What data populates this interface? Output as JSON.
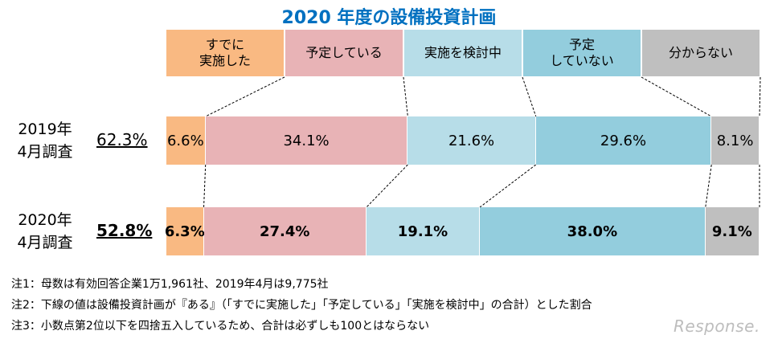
{
  "chart_data": {
    "type": "bar",
    "title": "2020 年度の設備投資計画",
    "categories": [
      "すでに\n実施した",
      "予定している",
      "実施を検討中",
      "予定\nしていない",
      "分からない"
    ],
    "colors": [
      "#f9b982",
      "#e8b3b6",
      "#b7dde8",
      "#93cddd",
      "#bfbfbf"
    ],
    "series": [
      {
        "name": "2019年\n4月調査",
        "total": "62.3%",
        "values": [
          6.6,
          34.1,
          21.6,
          29.6,
          8.1
        ],
        "labels": [
          "6.6%",
          "34.1%",
          "21.6%",
          "29.6%",
          "8.1%"
        ],
        "bold": false
      },
      {
        "name": "2020年\n4月調査",
        "total": "52.8%",
        "values": [
          6.3,
          27.4,
          19.1,
          38.0,
          9.1
        ],
        "labels": [
          "6.3%",
          "27.4%",
          "19.1%",
          "38.0%",
          "9.1%"
        ],
        "bold": true
      }
    ]
  },
  "notes": [
    "注1：母数は有効回答企業1万1,961社、2019年4月は9,775社",
    "注2：下線の値は設備投資計画が『ある』（「すでに実施した」「予定している」「実施を検討中」の合計）とした割合",
    "注3：小数点第2位以下を四捨五入しているため、合計は必ずしも100とはならない"
  ],
  "logo": "Response."
}
